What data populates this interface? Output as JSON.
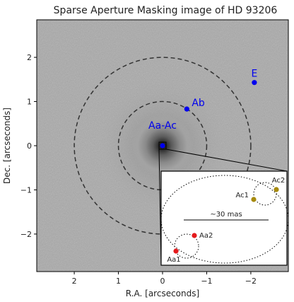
{
  "chart_data": {
    "type": "scatter",
    "title": "Sparse Aperture Masking image of HD 93206",
    "xlabel": "R.A. [arcseconds]",
    "ylabel": "Dec. [arcseconds]",
    "xlim": [
      2.85,
      -2.85
    ],
    "ylim": [
      -2.85,
      2.85
    ],
    "x_reversed": true,
    "x_ticks": [
      2,
      1,
      0,
      -1,
      -2
    ],
    "x_tick_labels": [
      "2",
      "1",
      "0",
      "−1",
      "−2"
    ],
    "y_ticks": [
      2,
      1,
      0,
      -1,
      -2
    ],
    "y_tick_labels": [
      "2",
      "1",
      "0",
      "−1",
      "−2"
    ],
    "grid": false,
    "background": "grayscale speckle image, bright central source",
    "rings": [
      {
        "center": [
          0,
          0
        ],
        "radius_arcsec": 1.0,
        "style": "dashed"
      },
      {
        "center": [
          0,
          0
        ],
        "radius_arcsec": 2.0,
        "style": "dashed"
      }
    ],
    "points": [
      {
        "label": "Aa-Ac",
        "x": 0.0,
        "y": 0.0,
        "color": "#0000ee"
      },
      {
        "label": "Ab",
        "x": -0.55,
        "y": 0.83,
        "color": "#0000ee"
      },
      {
        "label": "E",
        "x": -2.08,
        "y": 1.43,
        "color": "#0000ee"
      }
    ],
    "zoom_box": {
      "center": [
        0,
        0
      ],
      "half_size_arcsec": 0.05
    },
    "inset": {
      "scale_label": "~30 mas",
      "points": [
        {
          "label": "Aa1",
          "color": "#e41a1c"
        },
        {
          "label": "Aa2",
          "color": "#e41a1c"
        },
        {
          "label": "Ac1",
          "color": "#a68a0d"
        },
        {
          "label": "Ac2",
          "color": "#a68a0d"
        }
      ]
    }
  }
}
